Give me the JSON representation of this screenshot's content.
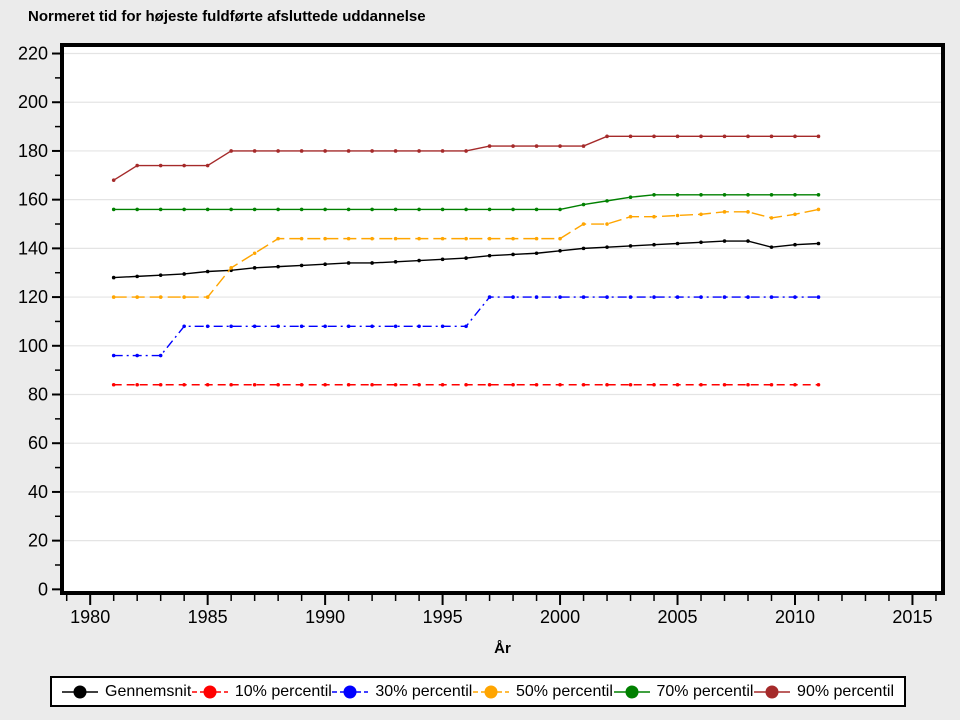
{
  "colors": {
    "page_background": "#EBEBEB",
    "plot_background": "#FFFFFF",
    "gridline": "#E4E4E4",
    "frame": "#000000",
    "text": "#000000"
  },
  "chart_data": {
    "type": "line",
    "title": "Normeret tid for højeste fuldførte afsluttede uddannelse",
    "xlabel": "År",
    "ylabel": "",
    "grid": "horizontal-only",
    "legend_position": "bottom-box",
    "xlim": [
      1978.8,
      2016.3
    ],
    "ylim": [
      -1.5,
      223.5
    ],
    "xticks": [
      1980,
      1985,
      1990,
      1995,
      2000,
      2005,
      2010,
      2015
    ],
    "x_minor_tick_range": [
      1979,
      2016
    ],
    "yticks": [
      0,
      20,
      40,
      60,
      80,
      100,
      120,
      140,
      160,
      180,
      200,
      220
    ],
    "y_minor_tick_step": 10,
    "x": [
      1981,
      1982,
      1983,
      1984,
      1985,
      1986,
      1987,
      1988,
      1989,
      1990,
      1991,
      1992,
      1993,
      1994,
      1995,
      1996,
      1997,
      1998,
      1999,
      2000,
      2001,
      2002,
      2003,
      2004,
      2005,
      2006,
      2007,
      2008,
      2009,
      2010,
      2011
    ],
    "series": [
      {
        "name": "Gennemsnit",
        "color": "#000000",
        "dash": "solid",
        "values": [
          128,
          128.5,
          129,
          129.5,
          130.5,
          131,
          132,
          132.5,
          133,
          133.5,
          134,
          134,
          134.5,
          135,
          135.5,
          136,
          137,
          137.5,
          138,
          139,
          140,
          140.5,
          141,
          141.5,
          142,
          142.5,
          143,
          143,
          140.5,
          141.5,
          142
        ]
      },
      {
        "name": "10% percentil",
        "color": "#FF0000",
        "dash": "dash",
        "values": [
          84,
          84,
          84,
          84,
          84,
          84,
          84,
          84,
          84,
          84,
          84,
          84,
          84,
          84,
          84,
          84,
          84,
          84,
          84,
          84,
          84,
          84,
          84,
          84,
          84,
          84,
          84,
          84,
          84,
          84,
          84
        ]
      },
      {
        "name": "30% percentil",
        "color": "#0000FF",
        "dash": "dash-dot",
        "values": [
          96,
          96,
          96,
          108,
          108,
          108,
          108,
          108,
          108,
          108,
          108,
          108,
          108,
          108,
          108,
          108,
          120,
          120,
          120,
          120,
          120,
          120,
          120,
          120,
          120,
          120,
          120,
          120,
          120,
          120,
          120
        ]
      },
      {
        "name": "50% percentil",
        "color": "#FFA500",
        "dash": "long-dash",
        "values": [
          120,
          120,
          120,
          120,
          120,
          132,
          138,
          144,
          144,
          144,
          144,
          144,
          144,
          144,
          144,
          144,
          144,
          144,
          144,
          144,
          150,
          150,
          153,
          153,
          153.5,
          154,
          155,
          155,
          152.5,
          154,
          156
        ]
      },
      {
        "name": "70% percentil",
        "color": "#008000",
        "dash": "solid",
        "values": [
          156,
          156,
          156,
          156,
          156,
          156,
          156,
          156,
          156,
          156,
          156,
          156,
          156,
          156,
          156,
          156,
          156,
          156,
          156,
          156,
          158,
          159.5,
          161,
          162,
          162,
          162,
          162,
          162,
          162,
          162,
          162
        ]
      },
      {
        "name": "90% percentil",
        "color": "#A52A2A",
        "dash": "solid",
        "values": [
          168,
          174,
          174,
          174,
          174,
          180,
          180,
          180,
          180,
          180,
          180,
          180,
          180,
          180,
          180,
          180,
          182,
          182,
          182,
          182,
          182,
          186,
          186,
          186,
          186,
          186,
          186,
          186,
          186,
          186,
          186
        ]
      }
    ]
  }
}
